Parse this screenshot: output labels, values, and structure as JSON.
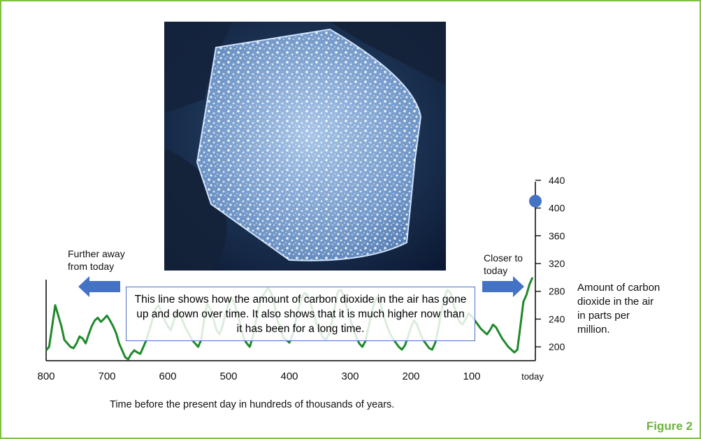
{
  "figure_label": "Figure 2",
  "caption_text": "This line shows how the amount of carbon dioxide in the air has gone up and down over time. It also shows that it is much higher now than it has been for a long time.",
  "arrows": {
    "left_label_line1": "Further away",
    "left_label_line2": "from today",
    "right_label_line1": "Closer to",
    "right_label_line2": "today"
  },
  "colors": {
    "frame": "#7dc243",
    "line": "#1f8a2a",
    "arrow": "#4472c4",
    "dot": "#4472c4",
    "figure_label": "#6db33f"
  },
  "image": {
    "subject": "ice-core-sample-photo"
  },
  "chart_data": {
    "type": "line",
    "xlabel": "Time before the present day in hundreds of thousands of years.",
    "ylabel_lines": [
      "Amount of carbon",
      "dioxide in the air",
      "in parts per",
      "million."
    ],
    "x_ticks": [
      "800",
      "700",
      "600",
      "500",
      "400",
      "300",
      "200",
      "100",
      "today"
    ],
    "y_ticks": [
      200,
      240,
      280,
      320,
      360,
      400,
      440
    ],
    "xlim": [
      800,
      0
    ],
    "ylim": [
      180,
      450
    ],
    "series": [
      {
        "x": [
          800,
          795,
          790,
          785,
          780,
          775,
          770,
          765,
          760,
          755,
          750,
          745,
          740,
          735,
          730,
          725,
          720,
          715,
          710,
          705,
          700,
          695,
          690,
          685,
          680,
          675,
          670,
          665,
          660,
          655,
          650,
          645,
          640,
          635,
          630,
          625,
          620,
          615,
          610,
          605,
          600,
          595,
          590,
          585,
          580,
          575,
          570,
          565,
          560,
          555,
          550,
          545,
          540,
          535,
          530,
          525,
          520,
          515,
          510,
          505,
          500,
          495,
          490,
          485,
          480,
          475,
          470,
          465,
          460,
          455,
          450,
          445,
          440,
          435,
          430,
          425,
          420,
          415,
          410,
          405,
          400,
          395,
          390,
          385,
          380,
          375,
          370,
          365,
          360,
          355,
          350,
          345,
          340,
          335,
          330,
          325,
          320,
          315,
          310,
          305,
          300,
          295,
          290,
          285,
          280,
          275,
          270,
          265,
          260,
          255,
          250,
          245,
          240,
          235,
          230,
          225,
          220,
          215,
          210,
          205,
          200,
          195,
          190,
          185,
          180,
          175,
          170,
          165,
          160,
          155,
          150,
          145,
          140,
          135,
          130,
          125,
          120,
          115,
          110,
          105,
          100,
          95,
          90,
          85,
          80,
          75,
          70,
          65,
          60,
          55,
          50,
          45,
          40,
          35,
          30,
          25,
          20,
          15,
          10,
          5,
          0
        ],
        "values": [
          195,
          200,
          230,
          260,
          245,
          230,
          210,
          205,
          200,
          198,
          205,
          215,
          212,
          205,
          218,
          230,
          238,
          242,
          236,
          240,
          245,
          238,
          230,
          220,
          205,
          195,
          185,
          182,
          190,
          195,
          192,
          190,
          200,
          210,
          225,
          240,
          255,
          260,
          248,
          238,
          230,
          224,
          238,
          250,
          248,
          236,
          226,
          218,
          210,
          205,
          200,
          210,
          240,
          262,
          255,
          240,
          225,
          218,
          230,
          248,
          262,
          270,
          262,
          246,
          230,
          212,
          205,
          200,
          215,
          238,
          258,
          272,
          278,
          285,
          278,
          262,
          240,
          226,
          214,
          210,
          206,
          216,
          236,
          256,
          270,
          278,
          274,
          262,
          248,
          232,
          222,
          214,
          210,
          218,
          236,
          258,
          280,
          282,
          272,
          254,
          240,
          226,
          214,
          205,
          200,
          208,
          228,
          248,
          264,
          272,
          262,
          246,
          232,
          220,
          212,
          206,
          200,
          196,
          202,
          214,
          228,
          238,
          232,
          220,
          210,
          204,
          198,
          196,
          206,
          226,
          250,
          272,
          282,
          278,
          262,
          246,
          236,
          232,
          240,
          248,
          244,
          238,
          232,
          226,
          222,
          218,
          224,
          232,
          228,
          220,
          212,
          206,
          200,
          196,
          192,
          196,
          230,
          265,
          275,
          290,
          300
        ]
      }
    ],
    "current_marker": {
      "x": 0,
      "y": 410
    }
  }
}
